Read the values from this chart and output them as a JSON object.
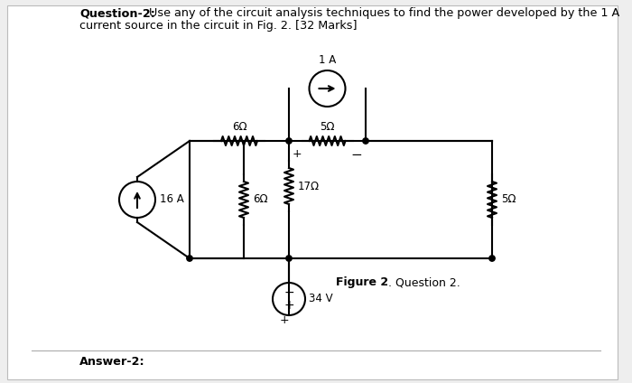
{
  "bg_outer": "#eeeeee",
  "bg_page": "#ffffff",
  "lc": "#000000",
  "lw": 1.5,
  "question_bold": "Question-2:",
  "question_rest": " Use any of the circuit analysis techniques to find the power developed by the 1 A",
  "question_line2": "current source in the circuit in Fig. 2. [32 Marks]",
  "fig_bold": "Figure 2",
  "fig_rest": ". Question 2.",
  "answer": "Answer-2:",
  "r6h": "6Ω",
  "r5h": "5Ω",
  "r17": "17Ω",
  "r6v": "6Ω",
  "r5v": "5Ω",
  "cs16": "16 A",
  "vs34": "34 V",
  "cs1": "1 A",
  "plus": "+",
  "minus": "−"
}
